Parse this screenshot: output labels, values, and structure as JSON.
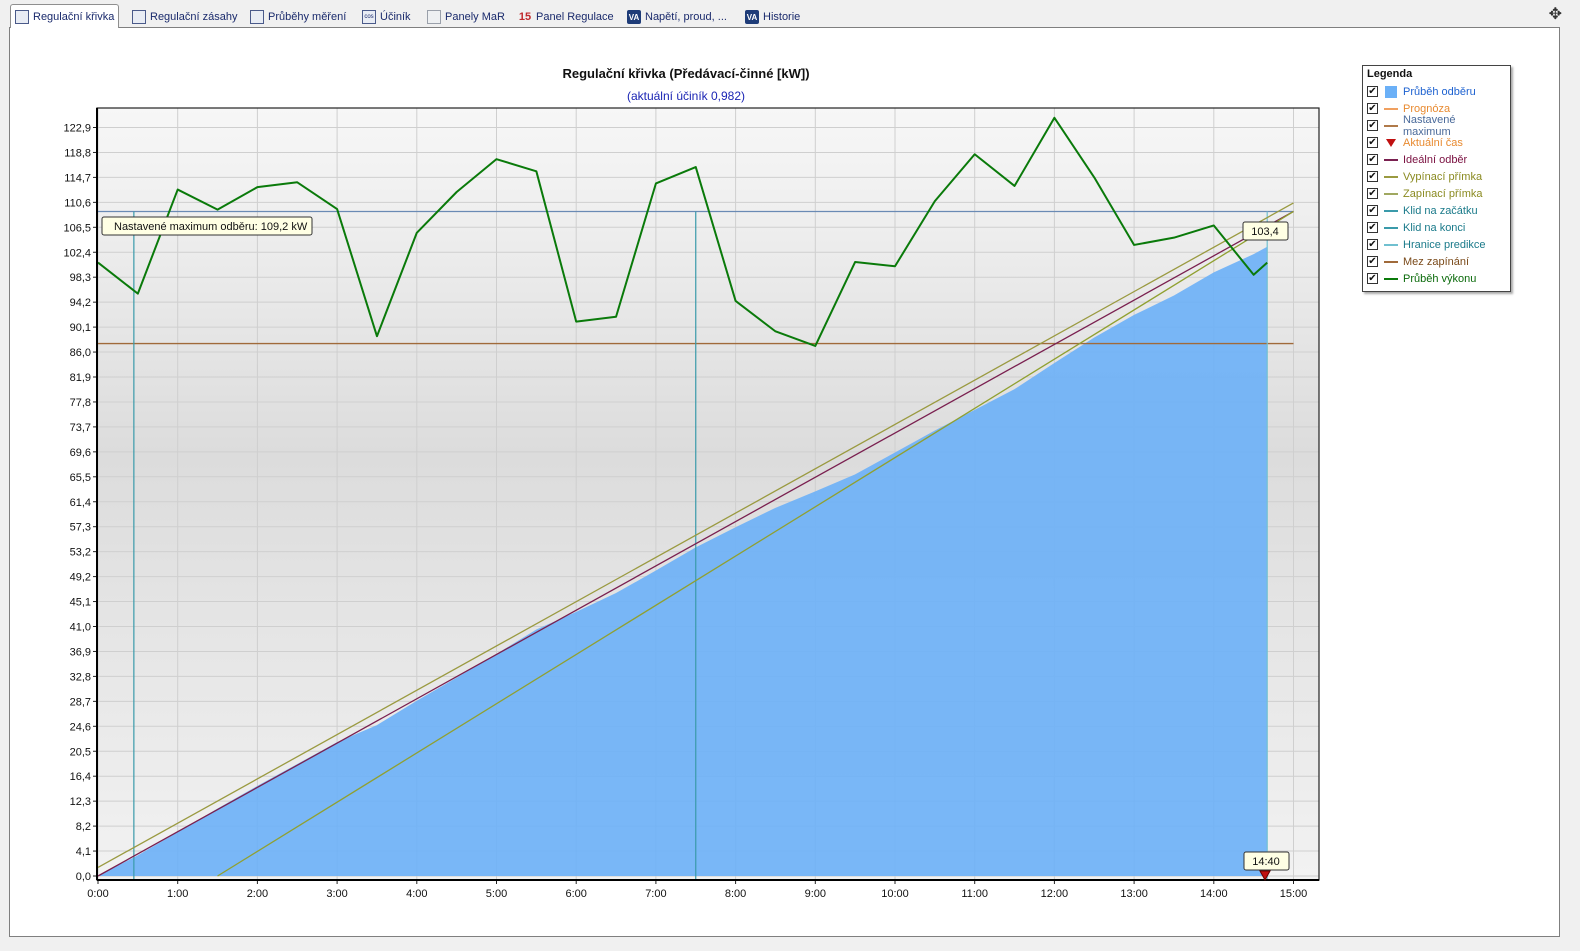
{
  "tabs": [
    {
      "label": "Regulační křivka",
      "icon": "chart-grid-icon",
      "active": true
    },
    {
      "label": "Regulační zásahy",
      "icon": "grid-icon",
      "active": false
    },
    {
      "label": "Průběhy měření",
      "icon": "grid-icon",
      "active": false
    },
    {
      "label": "Účiník",
      "icon": "cos-icon",
      "active": false
    },
    {
      "label": "Panely MaR",
      "icon": "panel-icon",
      "active": false
    },
    {
      "label": "Panel Regulace",
      "icon": "number-15-icon",
      "active": false
    },
    {
      "label": "Napětí, proud, ...",
      "icon": "va-icon",
      "active": false
    },
    {
      "label": "Historie",
      "icon": "va-icon",
      "active": false
    }
  ],
  "tab_icon_text": {
    "cos": "cos",
    "num": "15",
    "va": "VA"
  },
  "move_icon": "✥",
  "chart_data": {
    "type": "area",
    "title": "Regulační křivka (Předávací-činné [kW])",
    "subtitle": "(aktuální účiník 0,982)",
    "xlabel": "",
    "ylabel": "",
    "x_ticks": [
      "0:00",
      "1:00",
      "2:00",
      "3:00",
      "4:00",
      "5:00",
      "6:00",
      "7:00",
      "8:00",
      "9:00",
      "10:00",
      "11:00",
      "12:00",
      "13:00",
      "14:00",
      "15:00"
    ],
    "y_ticks": [
      "0,0",
      "4,1",
      "8,2",
      "12,3",
      "16,4",
      "20,5",
      "24,6",
      "28,7",
      "32,8",
      "36,9",
      "41,0",
      "45,1",
      "49,2",
      "53,2",
      "57,3",
      "61,4",
      "65,5",
      "69,6",
      "73,7",
      "77,8",
      "81,9",
      "86,0",
      "90,1",
      "94,2",
      "98,3",
      "102,4",
      "106,5",
      "110,6",
      "114,7",
      "118,8",
      "122,9"
    ],
    "xlim": [
      0,
      16
    ],
    "ylim": [
      0,
      125.5
    ],
    "grid": true,
    "legend_position": "right",
    "annotations": {
      "max_label": "Nastavené maximum odběru: 109,2 kW",
      "current_value": "103,4",
      "current_time": "14:40"
    },
    "lines": {
      "nastavene_maximum": 109.2,
      "mez_zapinani": 87.5,
      "klid_na_zacatku_x": 0.45,
      "klid_na_konci_x": 7.5,
      "hranice_predikce_x": 14.67,
      "aktualni_cas_x": 14.67
    },
    "series": [
      {
        "name": "Průběh odběru",
        "type": "area",
        "color": "#6bb0f7",
        "x": [
          0,
          0.5,
          1,
          1.5,
          2,
          2.5,
          3,
          3.5,
          4,
          4.5,
          5,
          5.5,
          6,
          6.5,
          7,
          7.5,
          8,
          8.5,
          9,
          9.5,
          10,
          10.5,
          11,
          11.5,
          12,
          12.5,
          13,
          13.5,
          14,
          14.5,
          14.67
        ],
        "y": [
          0,
          3.4,
          7.2,
          11.1,
          14.8,
          18.4,
          22.0,
          24.8,
          28.8,
          32.6,
          36.5,
          40.5,
          43.4,
          46.5,
          50.2,
          54.0,
          57.3,
          60.5,
          63.2,
          66.0,
          69.6,
          73.2,
          76.6,
          80.0,
          84.3,
          88.5,
          92.2,
          95.4,
          99.2,
          102.2,
          103.4
        ]
      },
      {
        "name": "Ideální odběr",
        "type": "line",
        "color": "#7a2050",
        "x": [
          0,
          15
        ],
        "y": [
          0,
          109.2
        ]
      },
      {
        "name": "Vypínací přímka",
        "type": "line",
        "color": "#9a9a40",
        "x": [
          0,
          15
        ],
        "y": [
          1.4,
          110.6
        ]
      },
      {
        "name": "Zapínací přímka",
        "type": "line",
        "color": "#90a030",
        "x": [
          1.5,
          15
        ],
        "y": [
          0,
          109.2
        ]
      },
      {
        "name": "Průběh výkonu",
        "type": "line",
        "color": "#0a7a0a",
        "x": [
          0,
          0.5,
          1,
          1.5,
          2,
          2.5,
          3,
          3.5,
          4,
          4.5,
          5,
          5.5,
          6,
          6.5,
          7,
          7.5,
          8,
          8.5,
          9,
          9.5,
          10,
          10.5,
          11,
          11.5,
          12,
          12.5,
          13,
          13.5,
          14,
          14.5,
          14.67
        ],
        "y": [
          100.8,
          95.7,
          112.8,
          109.5,
          113.2,
          114.0,
          109.6,
          88.7,
          105.7,
          112.4,
          117.8,
          115.8,
          91.1,
          91.9,
          113.8,
          116.5,
          94.5,
          89.5,
          87.1,
          100.9,
          100.2,
          110.9,
          118.6,
          113.4,
          124.6,
          114.8,
          103.7,
          104.9,
          106.9,
          98.8,
          100.8
        ]
      }
    ]
  },
  "legend": {
    "title": "Legenda",
    "items": [
      {
        "label": "Průběh odběru",
        "color": "#1e62d0",
        "symbol": "box",
        "symbol_color": "#6bb0f7",
        "checked": true
      },
      {
        "label": "Prognóza",
        "color": "#e88a30",
        "symbol": "line",
        "symbol_color": "#f0a060",
        "checked": true
      },
      {
        "label": "Nastavené maximum",
        "color": "#4a6a9a",
        "symbol": "line",
        "symbol_color": "#b07a4a",
        "checked": true
      },
      {
        "label": "Aktuální čas",
        "color": "#e88a30",
        "symbol": "triangle",
        "symbol_color": "#c01010",
        "checked": true
      },
      {
        "label": "Ideální odběr",
        "color": "#7a1040",
        "symbol": "line",
        "symbol_color": "#7a2050",
        "checked": true
      },
      {
        "label": "Vypínací přímka",
        "color": "#8a8a20",
        "symbol": "line",
        "symbol_color": "#9a9a40",
        "checked": true
      },
      {
        "label": "Zapínací přímka",
        "color": "#8a8a20",
        "symbol": "line",
        "symbol_color": "#a0a860",
        "checked": true
      },
      {
        "label": "Klid na začátku",
        "color": "#1a7a8a",
        "symbol": "line",
        "symbol_color": "#3a9aaa",
        "checked": true
      },
      {
        "label": "Klid na konci",
        "color": "#1a7a8a",
        "symbol": "line",
        "symbol_color": "#3a9aaa",
        "checked": true
      },
      {
        "label": "Hranice predikce",
        "color": "#1a7a8a",
        "symbol": "line",
        "symbol_color": "#70c0d0",
        "checked": true
      },
      {
        "label": "Mez zapínání",
        "color": "#7a4a1a",
        "symbol": "line",
        "symbol_color": "#a06a3a",
        "checked": true
      },
      {
        "label": "Průběh výkonu",
        "color": "#0a6a0a",
        "symbol": "line",
        "symbol_color": "#0a7a0a",
        "checked": true
      }
    ],
    "check_glyph": "✔"
  }
}
